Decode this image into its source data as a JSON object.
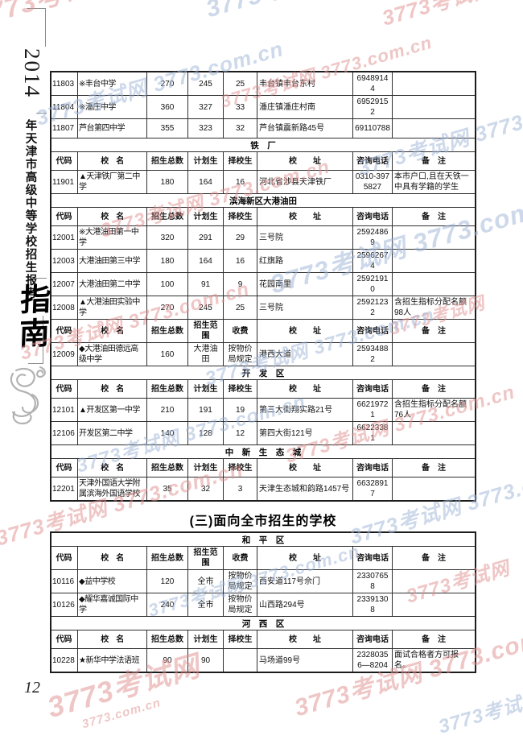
{
  "page_number": "12",
  "sidebar": {
    "year": "2014",
    "series_title": "年天津市高级中等学校招生报考",
    "guide": "指南"
  },
  "watermark": {
    "full": "3773考试网 3773.com.cn",
    "name": "3773考试网",
    "site": "3773.com.cn",
    "red": "#e08f8f",
    "blue": "#9db4d6"
  },
  "section_title": "(三)面向全市招生的学校",
  "headers": {
    "a": [
      "代码",
      "校　名",
      "招生总数",
      "计划生",
      "择校生",
      "校　　址",
      "咨询电话",
      "备　注"
    ],
    "b": [
      "代码",
      "校　名",
      "招生总数",
      "招生范围",
      "收费",
      "校　　址",
      "咨询电话",
      "备　注"
    ]
  },
  "tables": [
    {
      "name": "district-schools-continued",
      "blocks": [
        {
          "type": "rows",
          "rows": [
            [
              "11803",
              "※丰台中学",
              "270",
              "245",
              "25",
              "丰台镇丰台东村",
              "69489144",
              ""
            ],
            [
              "11804",
              "※潘庄中学",
              "360",
              "327",
              "33",
              "潘庄镇潘庄村南",
              "69529152",
              ""
            ],
            [
              "11807",
              "芦台第四中学",
              "355",
              "323",
              "32",
              "芦台镇震新路45号",
              "69110788",
              ""
            ]
          ]
        },
        {
          "type": "section",
          "label": "铁　厂"
        },
        {
          "type": "header",
          "variant": "a"
        },
        {
          "type": "rows",
          "rows": [
            [
              "11901",
              "▲天津铁厂第二中学",
              "180",
              "164",
              "16",
              "河北省涉县天津铁厂",
              "0310-3975827",
              "本市户口,且在天铁一中具有学籍的学生"
            ]
          ]
        },
        {
          "type": "section",
          "label": "滨海新区大港油田"
        },
        {
          "type": "header",
          "variant": "a"
        },
        {
          "type": "rows",
          "rows": [
            [
              "12001",
              "※大港油田第一中学",
              "320",
              "291",
              "29",
              "三号院",
              "25924869",
              ""
            ],
            [
              "12003",
              "大港油田第三中学",
              "180",
              "164",
              "16",
              "红旗路",
              "25962674",
              ""
            ],
            [
              "12007",
              "大港油田第二中学",
              "100",
              "91",
              "9",
              "花园南里",
              "25921910",
              ""
            ],
            [
              "12008",
              "▲大港油田实验中学",
              "270",
              "245",
              "25",
              "三号院",
              "25921232",
              "含招生指标分配名额98人"
            ]
          ]
        },
        {
          "type": "header",
          "variant": "b"
        },
        {
          "type": "rows",
          "rows": [
            [
              "12009",
              "◆大港油田德远高级中学",
              "160",
              "大港油田",
              "按物价局规定",
              "港西大道",
              "25934882",
              ""
            ]
          ]
        },
        {
          "type": "section",
          "label": "开　发　区"
        },
        {
          "type": "header",
          "variant": "a"
        },
        {
          "type": "rows",
          "rows": [
            [
              "12101",
              "▲开发区第一中学",
              "210",
              "191",
              "19",
              "第三大街翔实路21号",
              "66219721",
              "含招生指标分配名额76人"
            ],
            [
              "12106",
              "开发区第二中学",
              "140",
              "128",
              "12",
              "第四大街121号",
              "66223381",
              ""
            ]
          ]
        },
        {
          "type": "section",
          "label": "中　新　生　态　城"
        },
        {
          "type": "header",
          "variant": "a"
        },
        {
          "type": "rows",
          "rows": [
            [
              "12201",
              "天津外国语大学附属滨海外国语学校",
              "35",
              "32",
              "3",
              "天津生态城和韵路1457号",
              "66328917",
              ""
            ]
          ]
        }
      ]
    },
    {
      "name": "citywide-schools",
      "blocks": [
        {
          "type": "section",
          "label": "和　平　区"
        },
        {
          "type": "header",
          "variant": "b"
        },
        {
          "type": "rows",
          "rows": [
            [
              "10116",
              "◆益中学校",
              "120",
              "全市",
              "按物价局规定",
              "西安道117号佘门",
              "23307658",
              ""
            ],
            [
              "10126",
              "◆耀华嘉诚国际中学",
              "240",
              "全市",
              "按物价局规定",
              "山西路294号",
              "23391308",
              ""
            ]
          ]
        },
        {
          "type": "section",
          "label": "河　西　区"
        },
        {
          "type": "header",
          "variant": "a"
        },
        {
          "type": "rows",
          "rows": [
            [
              "10228",
              "★新华中学法语班",
              "90",
              "90",
              "",
              "马场道99号",
              "23280356—8204",
              "面试合格者方可报名。"
            ]
          ]
        }
      ]
    }
  ]
}
